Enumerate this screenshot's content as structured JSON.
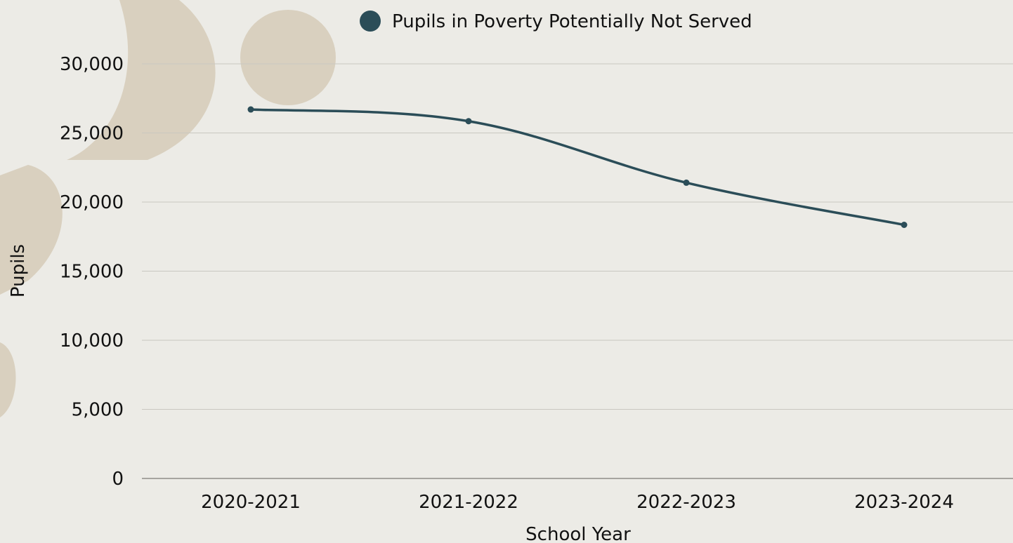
{
  "chart_data": {
    "type": "line",
    "title": "",
    "xlabel": "School Year",
    "ylabel": "Pupils",
    "categories": [
      "2020-2021",
      "2021-2022",
      "2022-2023",
      "2023-2024"
    ],
    "series": [
      {
        "name": "Pupils in Poverty Potentially Not Served",
        "values": [
          26700,
          25850,
          21400,
          18350
        ],
        "color": "#2b4d58"
      }
    ],
    "ylim": [
      0,
      30000
    ],
    "yticks": [
      0,
      5000,
      10000,
      15000,
      20000,
      25000,
      30000
    ],
    "ytick_labels": [
      "0",
      "5,000",
      "10,000",
      "15,000",
      "20,000",
      "25,000",
      "30,000"
    ],
    "grid": "horizontal",
    "legend_position": "top",
    "colors": {
      "background": "#ecebe6",
      "gridline": "#c9c7c0",
      "decoration": "#d6cbb7"
    }
  }
}
